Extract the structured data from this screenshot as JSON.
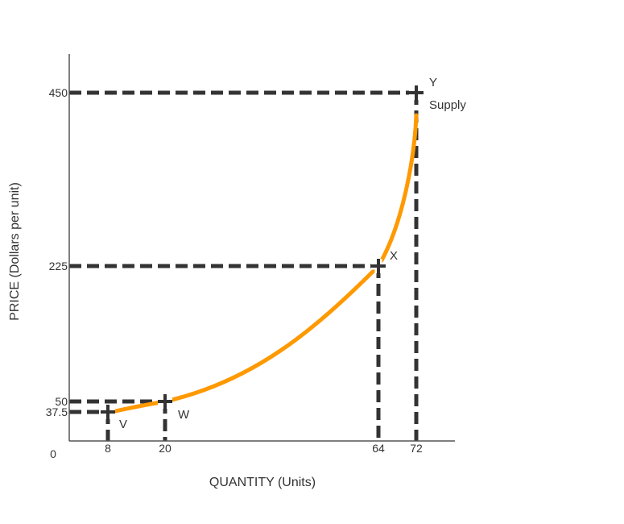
{
  "chart_data": {
    "type": "line",
    "xlabel": "QUANTITY (Units)",
    "ylabel": "PRICE (Dollars per unit)",
    "origin_label": "0",
    "x_ticks": [
      8,
      20,
      64,
      72
    ],
    "y_ticks": [
      37.5,
      50,
      225,
      450
    ],
    "series": [
      {
        "name": "Supply",
        "color": "#ff9900",
        "points": [
          {
            "label": "V",
            "x": 8,
            "y": 37.5
          },
          {
            "label": "W",
            "x": 20,
            "y": 50
          },
          {
            "label": "X",
            "x": 64,
            "y": 225
          },
          {
            "label": "Y",
            "x": 72,
            "y": 450
          }
        ]
      }
    ],
    "guide_color": "#333333",
    "grid": false,
    "legend": "none"
  }
}
